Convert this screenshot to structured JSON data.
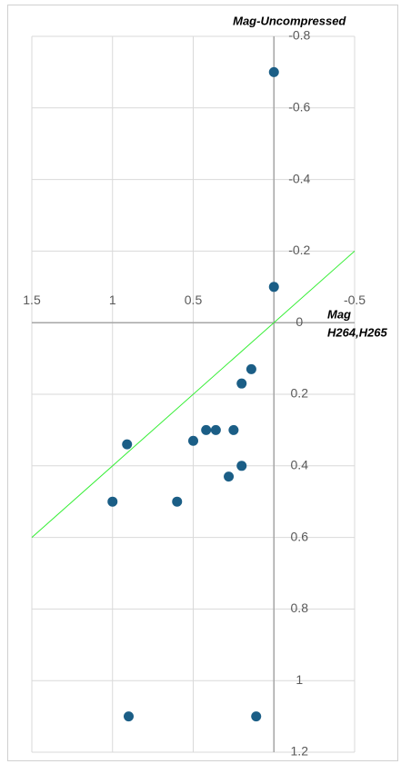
{
  "chart_data": {
    "type": "scatter",
    "y_label": "Mag-Uncompressed",
    "x_label": [
      "Mag",
      "H264,H265"
    ],
    "xlim": [
      1.5,
      -0.5
    ],
    "xticks": [
      1.5,
      1,
      0.5,
      -0.5
    ],
    "ylim": [
      -0.8,
      1.2
    ],
    "yticks": [
      -0.8,
      -0.6,
      -0.4,
      -0.2,
      0,
      0.2,
      0.4,
      0.6,
      0.8,
      1,
      1.2
    ],
    "grid": true,
    "series": [
      {
        "type": "scatter",
        "color": "#1b5e86",
        "x": [
          0,
          0,
          0.14,
          0.2,
          0.42,
          0.36,
          0.25,
          0.5,
          0.91,
          0.2,
          0.28,
          1.0,
          0.6,
          0.9,
          0.11
        ],
        "values": [
          -0.7,
          -0.1,
          0.13,
          0.17,
          0.3,
          0.3,
          0.3,
          0.33,
          0.34,
          0.4,
          0.43,
          0.5,
          0.5,
          1.1,
          1.1
        ]
      },
      {
        "type": "line",
        "color": "#33ee33",
        "x": [
          1.5,
          -0.5
        ],
        "values": [
          0.6,
          -0.2
        ]
      }
    ]
  }
}
